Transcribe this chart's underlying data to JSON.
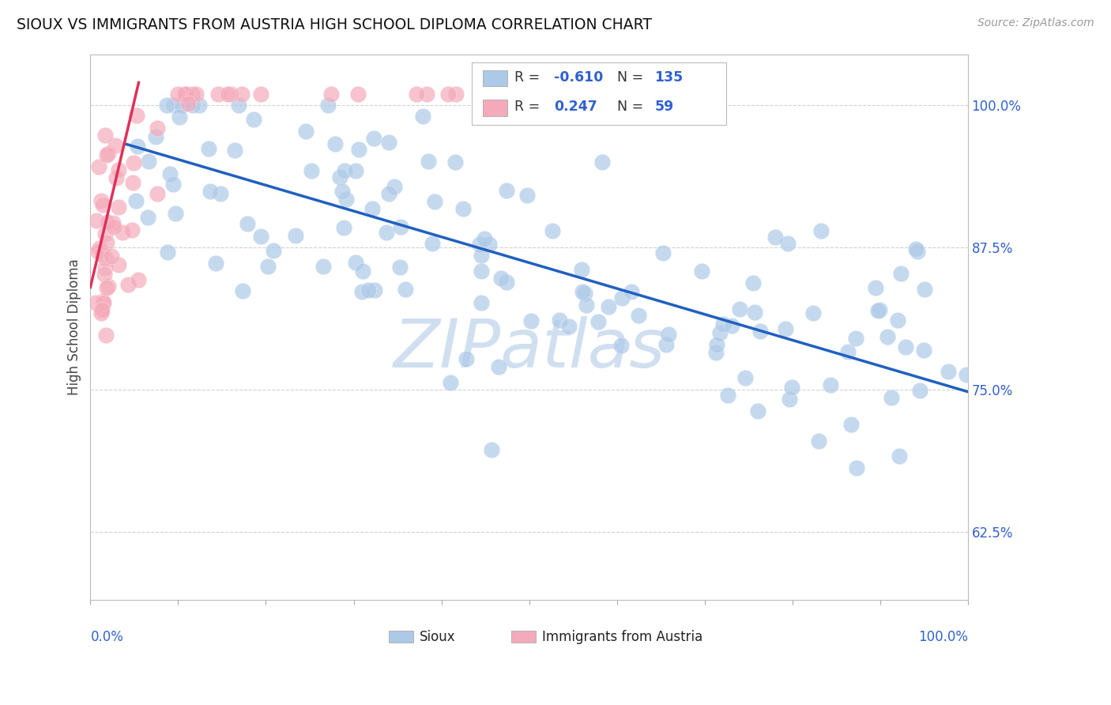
{
  "title": "SIOUX VS IMMIGRANTS FROM AUSTRIA HIGH SCHOOL DIPLOMA CORRELATION CHART",
  "source": "Source: ZipAtlas.com",
  "ylabel": "High School Diploma",
  "ytick_positions": [
    0.625,
    0.75,
    0.875,
    1.0
  ],
  "ytick_labels": [
    "62.5%",
    "75.0%",
    "87.5%",
    "100.0%"
  ],
  "xlim": [
    0.0,
    1.0
  ],
  "ylim": [
    0.565,
    1.045
  ],
  "blue_color": "#adc9e8",
  "pink_color": "#f4aaba",
  "blue_line_color": "#2060c0",
  "pink_line_color": "#e0305a",
  "legend_val_color": "#3060d0",
  "watermark_color": "#d0dff0",
  "background_color": "#ffffff",
  "grid_color": "#cccccc",
  "title_fontsize": 13.5,
  "blue_line_x0": 0.04,
  "blue_line_y0": 0.966,
  "blue_line_x1": 1.0,
  "blue_line_y1": 0.748,
  "pink_line_x0": 0.0,
  "pink_line_y0": 0.84,
  "pink_line_x1": 0.055,
  "pink_line_y1": 1.02,
  "seed": 77
}
